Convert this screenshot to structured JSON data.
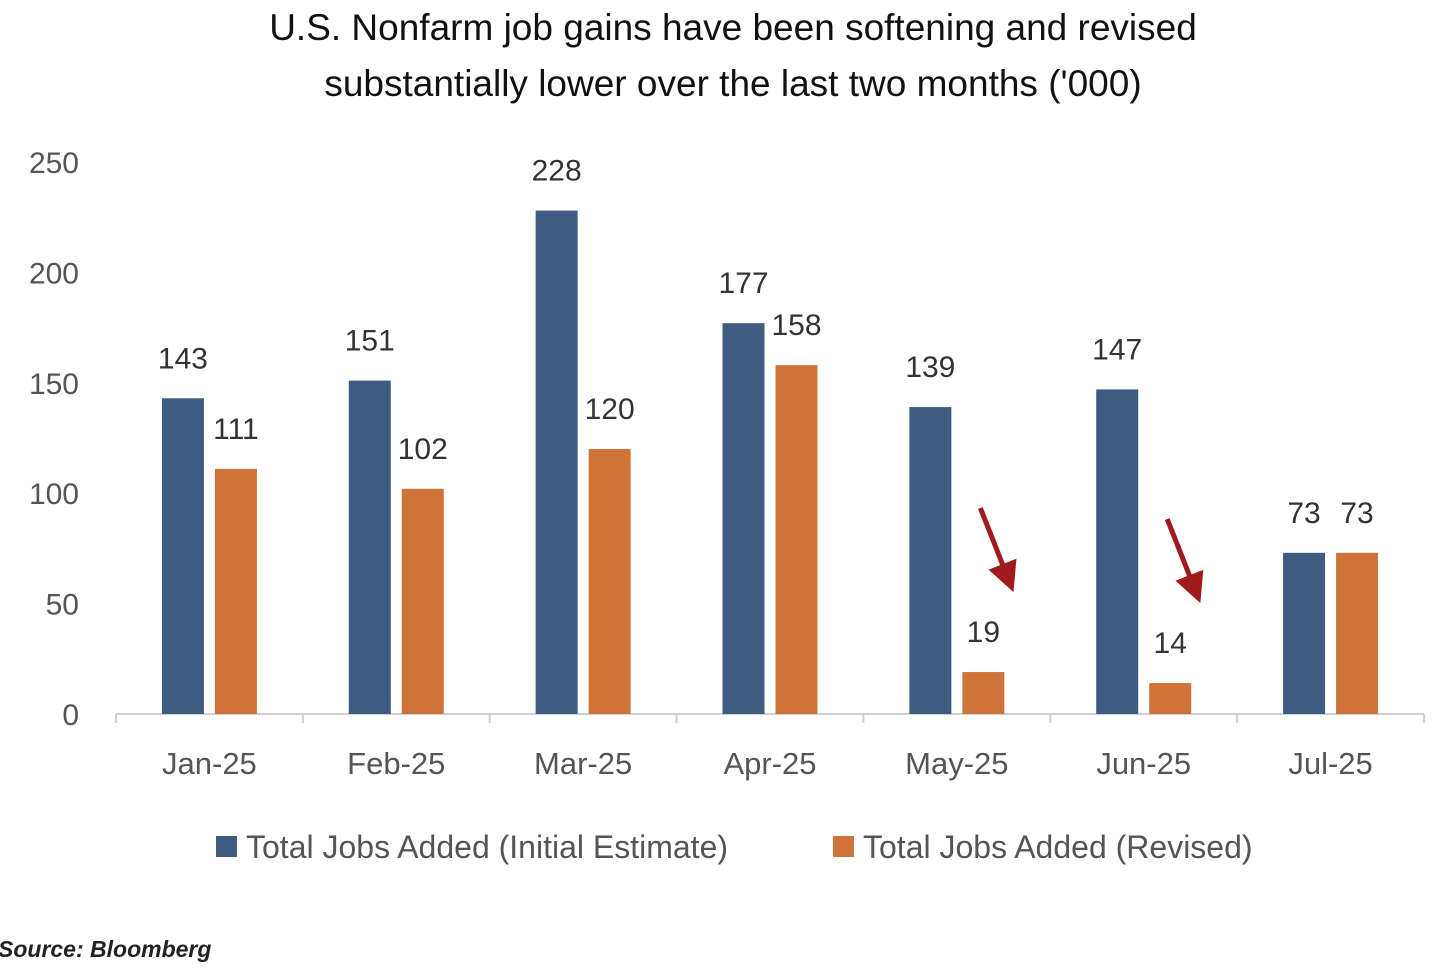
{
  "colors": {
    "initial": "#3d5c80",
    "revised": "#cf7438",
    "axis": "#d0d0d0",
    "arrow": "#a01c1c"
  },
  "chart_data": {
    "type": "bar",
    "title_lines": [
      "U.S. Nonfarm job gains have been softening and revised",
      "substantially lower over the last two months ('000)"
    ],
    "categories": [
      "Jan-25",
      "Feb-25",
      "Mar-25",
      "Apr-25",
      "May-25",
      "Jun-25",
      "Jul-25"
    ],
    "series": [
      {
        "name": "Total Jobs Added (Initial Estimate)",
        "color_key": "initial",
        "values": [
          143,
          151,
          228,
          177,
          139,
          147,
          73
        ],
        "labels": [
          "143",
          "151",
          "228",
          "177",
          "139",
          "147",
          "73"
        ]
      },
      {
        "name": "Total Jobs Added (Revised)",
        "color_key": "revised",
        "values": [
          111,
          102,
          120,
          158,
          19,
          14,
          73
        ],
        "labels": [
          "111",
          "102",
          "120",
          "158",
          "19",
          "14",
          "73"
        ]
      }
    ],
    "yticks": [
      0,
      50,
      100,
      150,
      200,
      250
    ],
    "ytick_labels": [
      "0",
      "50",
      "100",
      "150",
      "200",
      "250"
    ],
    "ylim": [
      0,
      250
    ],
    "xlabel": "",
    "ylabel": "",
    "grid": false,
    "legend": "bottom-center",
    "annotations": [
      {
        "type": "arrow",
        "category": "May-25",
        "points_to": "Total Jobs Added (Revised)"
      },
      {
        "type": "arrow",
        "category": "Jun-25",
        "points_to": "Total Jobs Added (Revised)"
      }
    ]
  },
  "source": "Source: Bloomberg"
}
